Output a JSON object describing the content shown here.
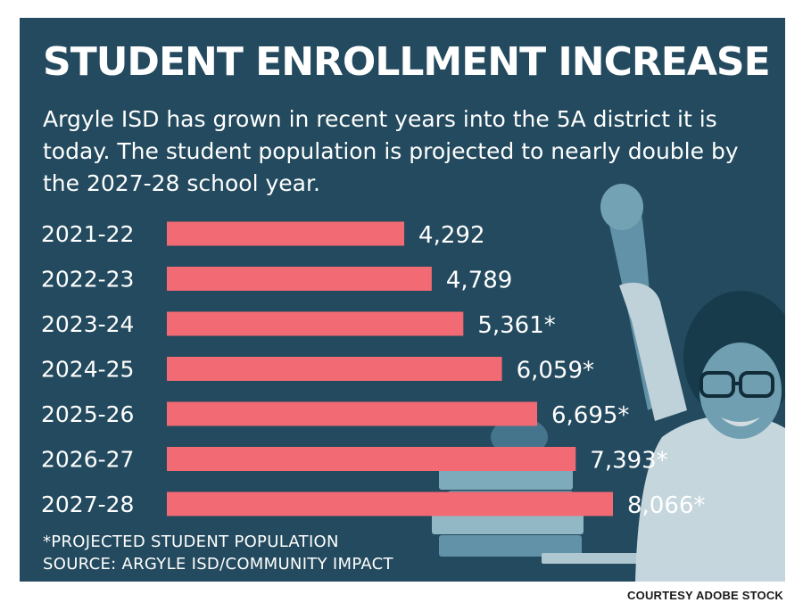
{
  "title": "STUDENT ENROLLMENT INCREASE",
  "subtitle": "Argyle ISD has grown in recent years into the 5A district it is today. The student population is projected to nearly double by the 2027-28 school year.",
  "footnote": "*PROJECTED STUDENT POPULATION",
  "source": "SOURCE: ARGYLE ISD/COMMUNITY IMPACT",
  "credit": "COURTESY ADOBE STOCK",
  "colors": {
    "background": "#234a5e",
    "bar": "#f26a73",
    "text": "#ffffff",
    "photo_tint": "#6a9fb6"
  },
  "chart_data": {
    "type": "bar",
    "orientation": "horizontal",
    "categories": [
      "2021-22",
      "2022-23",
      "2023-24",
      "2024-25",
      "2025-26",
      "2026-27",
      "2027-28"
    ],
    "values": [
      4292,
      4789,
      5361,
      6059,
      6695,
      7393,
      8066
    ],
    "value_labels": [
      "4,292",
      "4,789",
      "5,361*",
      "6,059*",
      "6,695*",
      "7,393*",
      "8,066*"
    ],
    "projected": [
      false,
      false,
      true,
      true,
      true,
      true,
      true
    ],
    "xlabel": "",
    "ylabel": "",
    "grid": false
  }
}
